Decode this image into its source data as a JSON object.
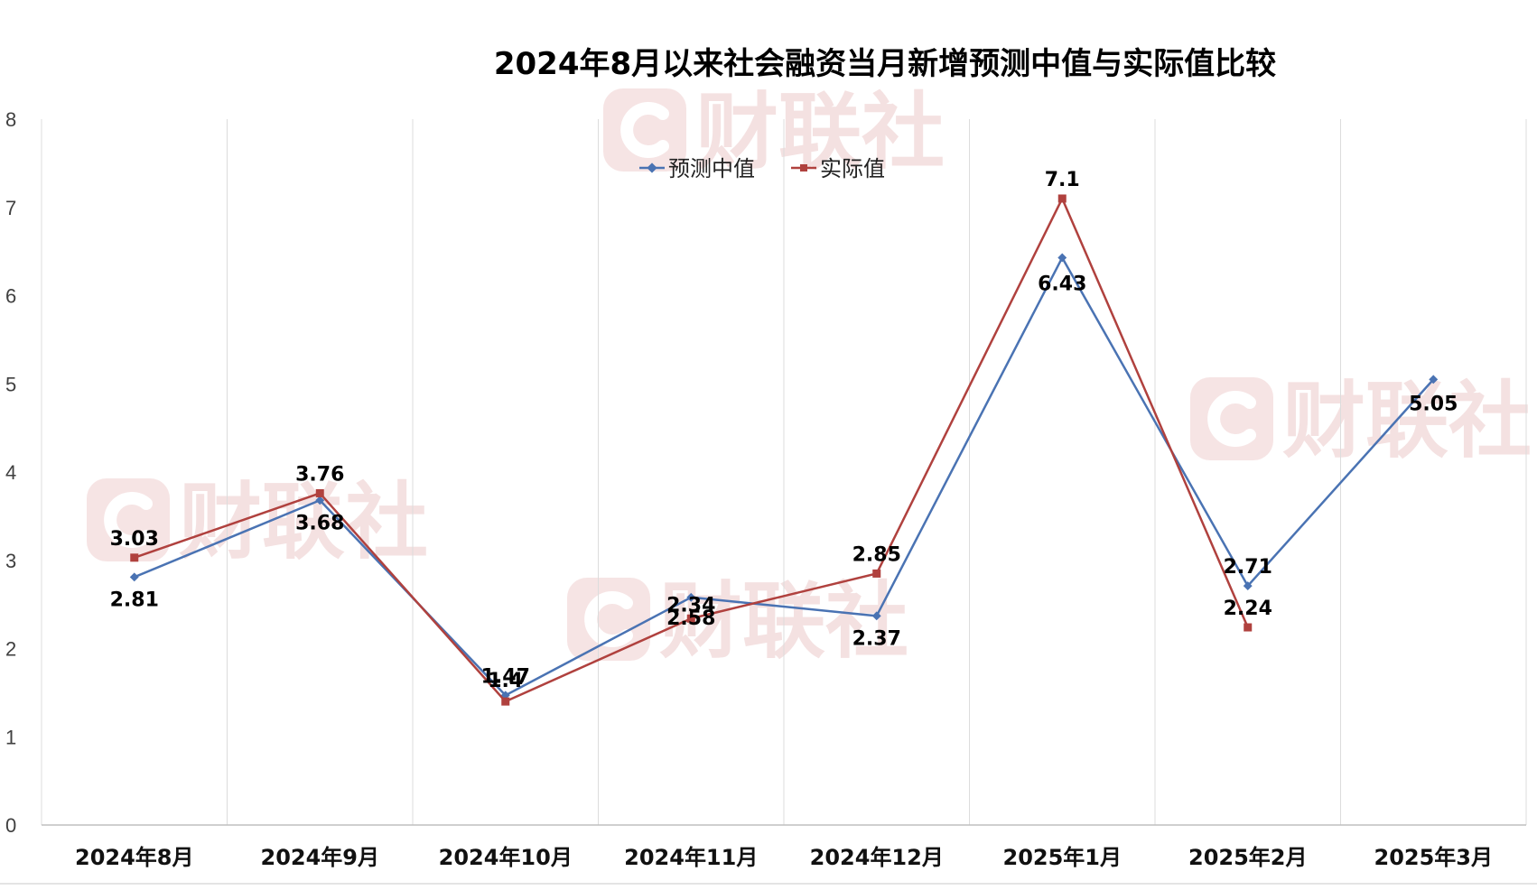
{
  "chart_data": {
    "type": "line",
    "title": "2024年8月以来社会融资当月新增预测中值与实际值比较",
    "categories": [
      "2024年8月",
      "2024年9月",
      "2024年10月",
      "2024年11月",
      "2024年12月",
      "2025年1月",
      "2025年2月",
      "2025年3月"
    ],
    "ylim": [
      0,
      8
    ],
    "yticks": [
      0,
      1,
      2,
      3,
      4,
      5,
      6,
      7,
      8
    ],
    "grid": "vertical",
    "legend_position": "top-center",
    "series": [
      {
        "name": "预测中值",
        "color": "#4a73b3",
        "marker": "diamond",
        "values": [
          2.81,
          3.68,
          1.47,
          2.58,
          2.37,
          6.43,
          2.71,
          5.05
        ],
        "labels": [
          "2.81",
          "3.68",
          "1.47",
          "2.58",
          "2.37",
          "6.43",
          "2.71",
          "5.05"
        ]
      },
      {
        "name": "实际值",
        "color": "#b0413e",
        "marker": "square",
        "values": [
          3.03,
          3.76,
          1.4,
          2.34,
          2.85,
          7.1,
          2.24,
          null
        ],
        "labels": [
          "3.03",
          "3.76",
          "1.4",
          "2.34",
          "2.85",
          "7.1",
          "2.24",
          null
        ]
      }
    ],
    "watermark": "财联社"
  }
}
